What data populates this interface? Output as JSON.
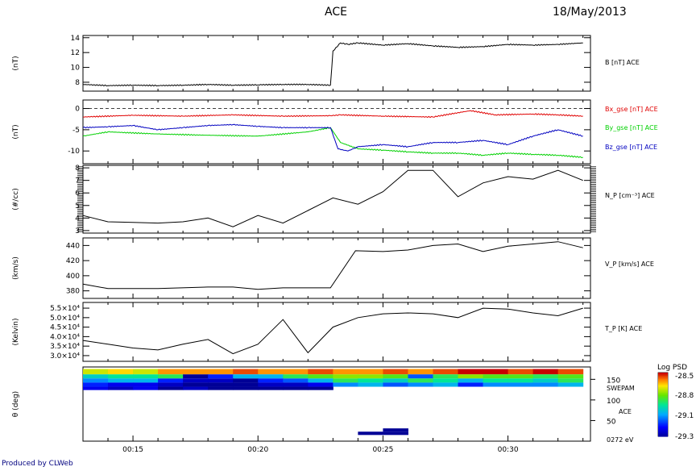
{
  "header": {
    "title": "ACE",
    "date": "18/May/2013"
  },
  "footer": {
    "credit": "Produced by CLWeb"
  },
  "x_axis": {
    "ticks": [
      "00:15",
      "00:20",
      "00:25",
      "00:30"
    ]
  },
  "chart_data": [
    {
      "type": "line",
      "ylabel": "(nT)",
      "ylim": [
        6.8,
        14.3
      ],
      "yticks": [
        "8",
        "10",
        "12",
        "14"
      ],
      "series": [
        {
          "name": "B [nT] ACE",
          "color": "#000000",
          "x": [
            13.0,
            14.0,
            15.0,
            16.0,
            17.0,
            18.0,
            19.0,
            20.0,
            21.0,
            22.0,
            22.9,
            23.0,
            23.3,
            23.6,
            24.0,
            25.0,
            26.0,
            27.0,
            28.0,
            29.0,
            30.0,
            31.0,
            32.0,
            33.0
          ],
          "y": [
            7.7,
            7.55,
            7.6,
            7.55,
            7.6,
            7.7,
            7.6,
            7.65,
            7.7,
            7.7,
            7.6,
            12.2,
            13.3,
            13.1,
            13.3,
            13.0,
            13.2,
            12.9,
            12.7,
            12.8,
            13.1,
            13.0,
            13.1,
            13.3
          ]
        }
      ]
    },
    {
      "type": "line",
      "ylabel": "(nT)",
      "ylim": [
        -13,
        2
      ],
      "yticks": [
        "0",
        "-5",
        "-10"
      ],
      "zero_line": true,
      "series": [
        {
          "name": "Bx_gse [nT] ACE",
          "color": "#e00000",
          "x": [
            13.0,
            15.0,
            17.0,
            19.0,
            21.0,
            22.9,
            23.3,
            25.0,
            27.0,
            28.5,
            29.5,
            31.0,
            32.0,
            33.0
          ],
          "y": [
            -2.0,
            -1.6,
            -1.8,
            -1.5,
            -1.8,
            -1.7,
            -1.5,
            -1.8,
            -2.0,
            -0.5,
            -1.5,
            -1.3,
            -1.5,
            -1.8
          ]
        },
        {
          "name": "By_gse [nT] ACE",
          "color": "#00d000",
          "x": [
            13.0,
            14.0,
            16.0,
            18.0,
            20.0,
            22.0,
            22.9,
            23.3,
            24.0,
            25.0,
            26.0,
            27.0,
            28.0,
            29.0,
            30.0,
            31.0,
            32.0,
            33.0
          ],
          "y": [
            -6.5,
            -5.5,
            -6.0,
            -6.3,
            -6.5,
            -5.5,
            -4.5,
            -8.0,
            -9.5,
            -9.8,
            -10.2,
            -10.5,
            -10.5,
            -11.0,
            -10.5,
            -10.8,
            -11.0,
            -11.5
          ]
        },
        {
          "name": "Bz_gse [nT] ACE",
          "color": "#0000c0",
          "x": [
            13.0,
            14.0,
            15.0,
            16.0,
            17.0,
            18.0,
            19.0,
            20.0,
            21.0,
            22.0,
            22.9,
            23.2,
            23.6,
            24.0,
            25.0,
            26.0,
            27.0,
            28.0,
            29.0,
            30.0,
            31.0,
            32.0,
            33.0
          ],
          "y": [
            -4.5,
            -4.3,
            -4.0,
            -5.0,
            -4.5,
            -4.0,
            -3.8,
            -4.2,
            -4.5,
            -4.5,
            -4.5,
            -9.5,
            -10.0,
            -9.0,
            -8.5,
            -9.0,
            -8.0,
            -8.0,
            -7.5,
            -8.5,
            -6.5,
            -5.0,
            -6.5
          ]
        }
      ]
    },
    {
      "type": "line",
      "ylabel": "(#/cc)",
      "ylim": [
        2.8,
        8.2
      ],
      "yticks": [
        "3",
        "4",
        "5",
        "6",
        "7",
        "8"
      ],
      "series": [
        {
          "name": "N_P [cm^-3] ACE",
          "color": "#000000",
          "x": [
            13.0,
            14.0,
            15.0,
            16.0,
            17.0,
            18.0,
            19.0,
            20.0,
            21.0,
            22.0,
            23.0,
            24.0,
            25.0,
            26.0,
            27.0,
            28.0,
            29.0,
            30.0,
            31.0,
            32.0,
            33.0
          ],
          "y": [
            4.2,
            3.7,
            3.65,
            3.6,
            3.7,
            4.0,
            3.3,
            4.2,
            3.6,
            4.6,
            5.6,
            5.1,
            6.1,
            7.8,
            7.8,
            5.7,
            6.8,
            7.3,
            7.1,
            7.8,
            7.0
          ]
        }
      ]
    },
    {
      "type": "line",
      "ylabel": "(km/s)",
      "ylim": [
        370,
        450
      ],
      "yticks": [
        "380",
        "400",
        "420",
        "440"
      ],
      "series": [
        {
          "name": "V_P [km/s] ACE",
          "color": "#000000",
          "x": [
            13.0,
            14.0,
            16.0,
            18.0,
            19.0,
            20.0,
            21.0,
            22.0,
            22.9,
            23.9,
            25.0,
            26.0,
            27.0,
            28.0,
            29.0,
            30.0,
            31.0,
            32.0,
            33.0
          ],
          "y": [
            389,
            383,
            383,
            385,
            385,
            382,
            384,
            384,
            384,
            433,
            432,
            434,
            440,
            442,
            432,
            439,
            442,
            445,
            437
          ]
        }
      ]
    },
    {
      "type": "line",
      "ylabel": "(Kelvin)",
      "ylim": [
        27000,
        58000
      ],
      "yticks": [
        "3.0×10⁴",
        "3.5×10⁴",
        "4.0×10⁴",
        "4.5×10⁴",
        "5.0×10⁴",
        "5.5×10⁴"
      ],
      "series": [
        {
          "name": "T_P [K] ACE",
          "color": "#000000",
          "x": [
            13.0,
            14.0,
            15.0,
            16.0,
            17.0,
            18.0,
            19.0,
            20.0,
            21.0,
            22.0,
            23.0,
            24.0,
            25.0,
            26.0,
            27.0,
            28.0,
            29.0,
            30.0,
            31.0,
            32.0,
            33.0
          ],
          "y": [
            38000,
            36000,
            34000,
            33000,
            36000,
            38500,
            31000,
            36000,
            49000,
            31500,
            45000,
            50000,
            52000,
            52500,
            52000,
            50000,
            55000,
            54500,
            52500,
            51000,
            55000
          ]
        }
      ]
    },
    {
      "type": "heatmap",
      "ylabel": "θ (deg)",
      "ylim": [
        0,
        180
      ],
      "yticks": [
        "150",
        "100",
        "50"
      ],
      "right_labels": [
        "SWEPAM",
        "ACE",
        "0272 eV"
      ],
      "colorbar": {
        "title": "Log PSD",
        "min": -29.3,
        "max": -28.5,
        "ticks": [
          "-28.5",
          "-28.8",
          "-29.1",
          "-29.3"
        ]
      },
      "x_edges": [
        13.0,
        14.0,
        15.0,
        16.0,
        17.0,
        18.0,
        19.0,
        20.0,
        21.0,
        22.0,
        23.0,
        24.0,
        25.0,
        26.0,
        27.0,
        28.0,
        29.0,
        30.0,
        31.0,
        32.0,
        33.0
      ],
      "bands": [
        {
          "lo": 162,
          "hi": 175,
          "values": [
            -28.7,
            -28.65,
            -28.7,
            -28.6,
            -28.6,
            -28.6,
            -28.55,
            -28.6,
            -28.6,
            -28.55,
            -28.6,
            -28.6,
            -28.55,
            -28.6,
            -28.55,
            -28.5,
            -28.5,
            -28.55,
            -28.5,
            -28.55
          ]
        },
        {
          "lo": 152,
          "hi": 162,
          "values": [
            -28.95,
            -28.9,
            -28.9,
            -28.85,
            -29.3,
            -29.15,
            -29.0,
            -29.0,
            -28.85,
            -28.8,
            -28.75,
            -28.75,
            -28.8,
            -29.1,
            -28.85,
            -28.75,
            -28.8,
            -28.8,
            -28.85,
            -28.8
          ]
        },
        {
          "lo": 142,
          "hi": 152,
          "values": [
            -29.05,
            -29.0,
            -29.0,
            -29.15,
            -29.25,
            -29.25,
            -29.3,
            -29.15,
            -29.1,
            -29.0,
            -28.85,
            -28.9,
            -28.95,
            -28.85,
            -28.9,
            -29.0,
            -28.9,
            -28.9,
            -28.95,
            -28.85
          ]
        },
        {
          "lo": 132,
          "hi": 142,
          "values": [
            -29.15,
            -29.2,
            -29.2,
            -29.25,
            -29.3,
            -29.3,
            -29.3,
            -29.25,
            -29.25,
            -29.2,
            -29.05,
            -29.0,
            -29.1,
            -29.05,
            -29.0,
            -29.15,
            -29.05,
            -29.05,
            -29.05,
            -29.0
          ]
        },
        {
          "lo": 124,
          "hi": 132,
          "values": [
            -29.2,
            -29.25,
            -29.2,
            -29.3,
            -29.25,
            -29.3,
            -29.3,
            -29.3,
            -29.3,
            -29.3,
            null,
            null,
            null,
            null,
            null,
            null,
            null,
            null,
            null,
            null
          ]
        },
        {
          "lo": 15,
          "hi": 23,
          "values": [
            null,
            null,
            null,
            null,
            null,
            null,
            null,
            null,
            null,
            null,
            null,
            -29.3,
            -29.3,
            null,
            null,
            null,
            null,
            null,
            null,
            null
          ]
        },
        {
          "lo": 23,
          "hi": 31,
          "values": [
            null,
            null,
            null,
            null,
            null,
            null,
            null,
            null,
            null,
            null,
            null,
            null,
            -29.3,
            null,
            null,
            null,
            null,
            null,
            null,
            null
          ]
        }
      ]
    }
  ]
}
